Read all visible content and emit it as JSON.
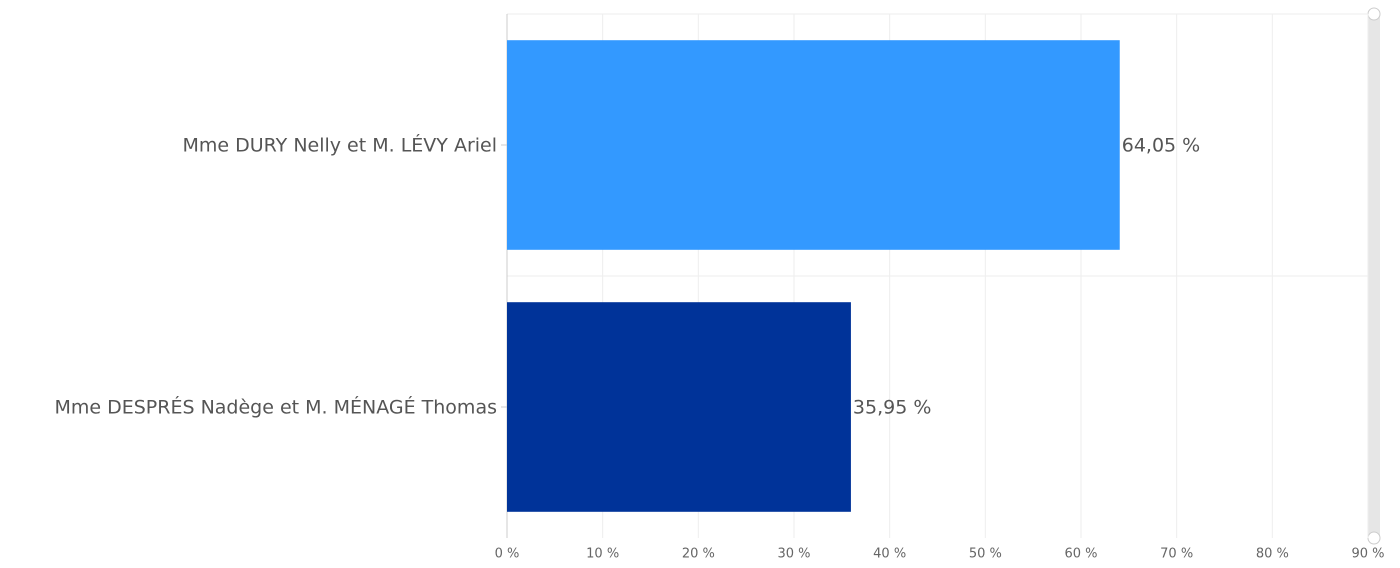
{
  "chart_data": {
    "type": "hbar",
    "categories": [
      "Mme DURY Nelly et M. LÉVY Ariel",
      "Mme DESPRÉS Nadège et M. MÉNAGÉ Thomas"
    ],
    "values": [
      64.05,
      35.95
    ],
    "value_labels": [
      "64,05 %",
      "35,95 %"
    ],
    "colors": [
      "#3399ff",
      "#003399"
    ],
    "xlim": [
      0,
      90
    ],
    "xticks": [
      {
        "value": 0,
        "label": "0 %"
      },
      {
        "value": 10,
        "label": "10 %"
      },
      {
        "value": 20,
        "label": "20 %"
      },
      {
        "value": 30,
        "label": "30 %"
      },
      {
        "value": 40,
        "label": "40 %"
      },
      {
        "value": 50,
        "label": "50 %"
      },
      {
        "value": 60,
        "label": "60 %"
      },
      {
        "value": 70,
        "label": "70 %"
      },
      {
        "value": 80,
        "label": "80 %"
      },
      {
        "value": 90,
        "label": "90 %"
      }
    ],
    "grid": true
  }
}
